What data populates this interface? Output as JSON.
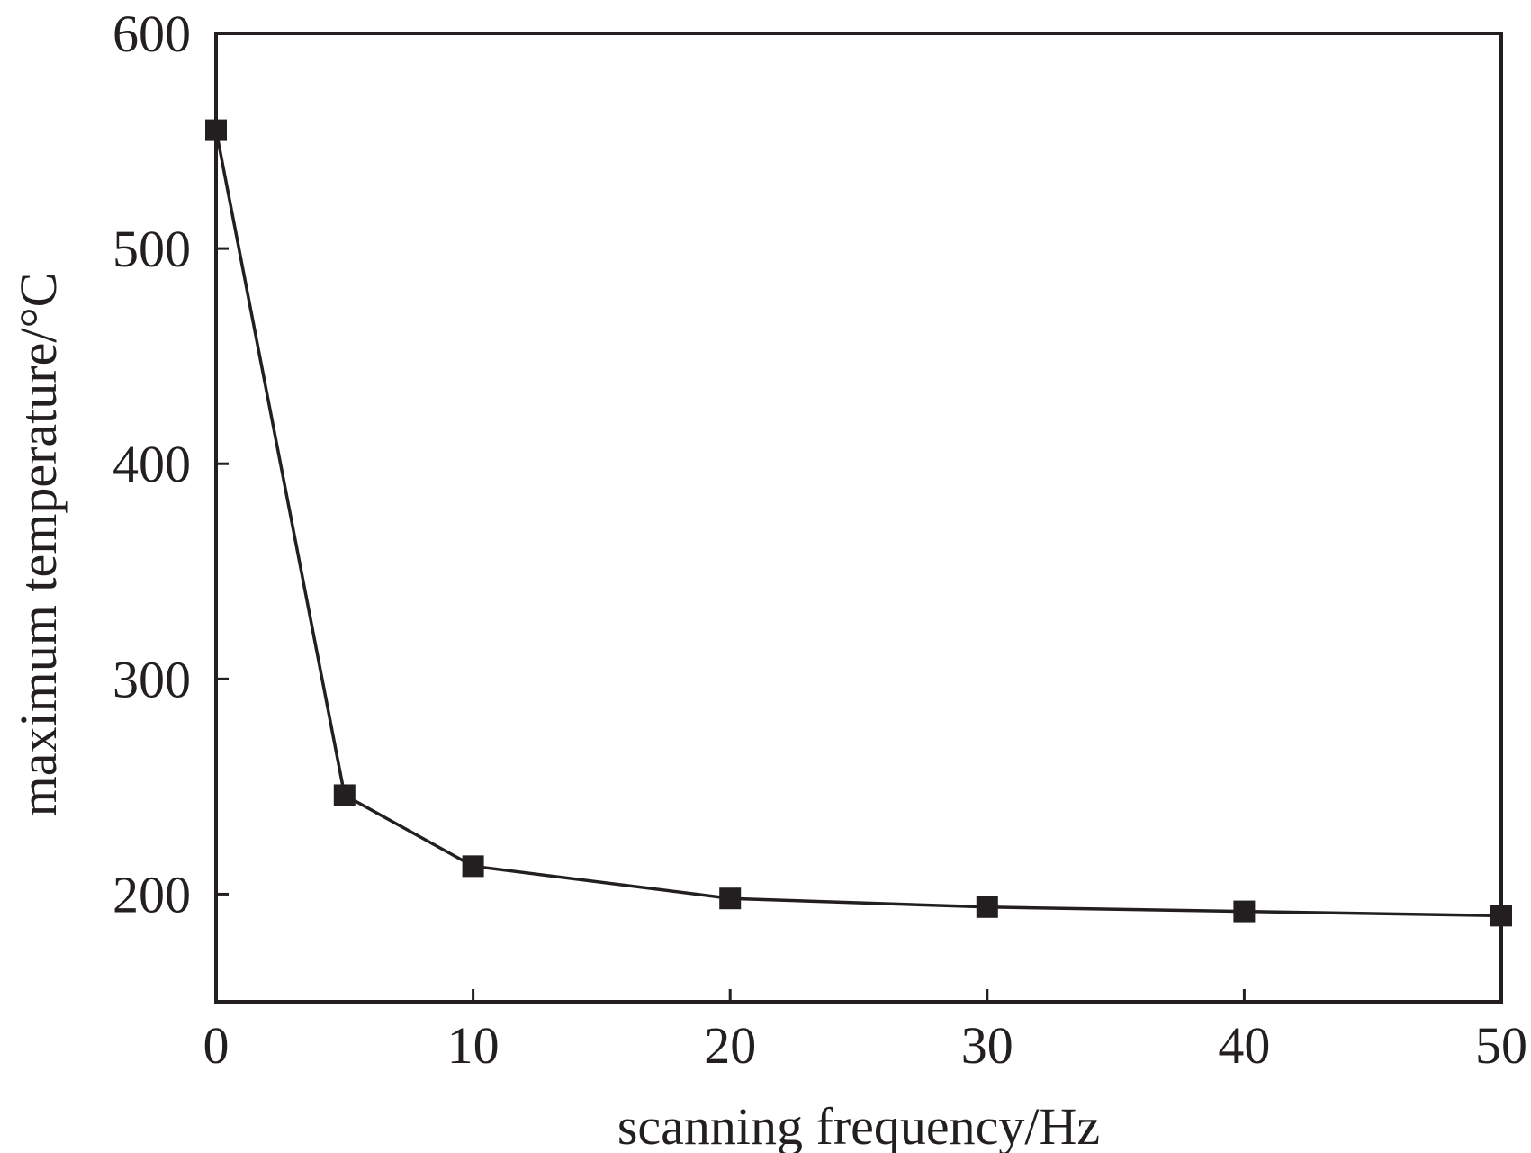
{
  "chart_data": {
    "type": "line",
    "xlabel": "scanning frequency/Hz",
    "ylabel": "maximum temperature/°C",
    "xlim": [
      0,
      50
    ],
    "ylim": [
      150,
      600
    ],
    "xticks": [
      0,
      10,
      20,
      30,
      40,
      50
    ],
    "yticks": [
      200,
      300,
      400,
      500,
      600
    ],
    "grid": false,
    "marker": "square",
    "series": [
      {
        "x": [
          0,
          5,
          10,
          20,
          30,
          40,
          50
        ],
        "y": [
          555,
          246,
          213,
          198,
          194,
          192,
          190
        ]
      }
    ],
    "colors": {
      "ink": "#231f20",
      "background": "#ffffff"
    }
  }
}
